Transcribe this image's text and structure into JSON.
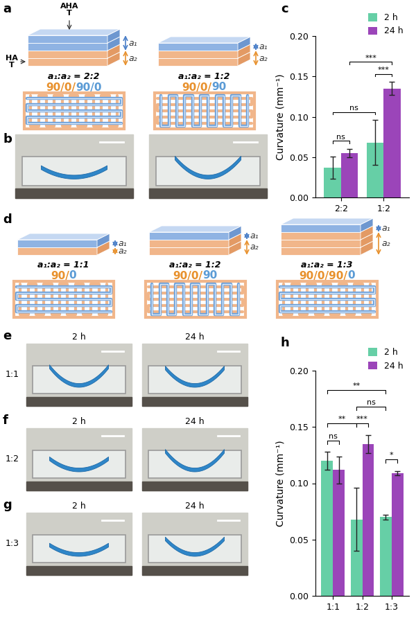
{
  "panels": {
    "a": {
      "letter": "a",
      "top_label": "AHA\nT",
      "bottom_label": "HA\nT",
      "stacks": [
        {
          "a1_label": "a₁",
          "a2_label": "a₂",
          "ratio_label": "a₁:a₂ = 2:2",
          "pattern": [
            {
              "text": "90/0/",
              "color": "#e8912d"
            },
            {
              "text": "90/0",
              "color": "#5b9bd5"
            }
          ]
        },
        {
          "a1_label": "a₁",
          "a2_label": "a₂",
          "ratio_label": "a₁:a₂ = 1:2",
          "pattern": [
            {
              "text": "90/0/",
              "color": "#e8912d"
            },
            {
              "text": "90",
              "color": "#5b9bd5"
            }
          ]
        }
      ]
    },
    "b": {
      "letter": "b"
    },
    "c": {
      "letter": "c"
    },
    "d": {
      "letter": "d",
      "stacks": [
        {
          "a1_label": "a₁",
          "a2_label": "a₂",
          "ratio_label": "a₁:a₂ = 1:1",
          "pattern": [
            {
              "text": "90/",
              "color": "#e8912d"
            },
            {
              "text": "0",
              "color": "#5b9bd5"
            }
          ]
        },
        {
          "a1_label": "a₁",
          "a2_label": "a₂",
          "ratio_label": "a₁:a₂ = 1:2",
          "pattern": [
            {
              "text": "90/0/",
              "color": "#e8912d"
            },
            {
              "text": "90",
              "color": "#5b9bd5"
            }
          ]
        },
        {
          "a1_label": "a₁",
          "a2_label": "a₂",
          "ratio_label": "a₁:a₂ = 1:3",
          "pattern": [
            {
              "text": "90/0/90/",
              "color": "#e8912d"
            },
            {
              "text": "0",
              "color": "#5b9bd5"
            }
          ]
        }
      ]
    },
    "e": {
      "letter": "e",
      "row_label": "1:1",
      "times": [
        "2 h",
        "24 h"
      ]
    },
    "f": {
      "letter": "f",
      "row_label": "1:2",
      "times": [
        "2 h",
        "24 h"
      ]
    },
    "g": {
      "letter": "g",
      "row_label": "1:3",
      "times": [
        "2 h",
        "24 h"
      ]
    },
    "h": {
      "letter": "h"
    }
  },
  "chart_data": [
    {
      "type": "bar",
      "y_label": "Curvature (mm⁻¹)",
      "categories": [
        "2:2",
        "1:2"
      ],
      "series": [
        {
          "name": "2 h",
          "color": "#66cfa6",
          "values": [
            0.037,
            0.068
          ],
          "errors": [
            0.014,
            0.028
          ]
        },
        {
          "name": "24 h",
          "color": "#9b45b9",
          "values": [
            0.055,
            0.135
          ],
          "errors": [
            0.005,
            0.008
          ]
        }
      ],
      "ylim": [
        0,
        0.2
      ],
      "yticks": [
        {
          "value": 0,
          "label": "0.00"
        },
        {
          "value": 0.05,
          "label": "0.05"
        },
        {
          "value": 0.1,
          "label": "0.10"
        },
        {
          "value": 0.15,
          "label": "0.15"
        },
        {
          "value": 0.2,
          "label": "0.20"
        }
      ],
      "legend": "upper right",
      "annotations": [
        {
          "between": [
            [
              "2:2",
              "2 h"
            ],
            [
              "2:2",
              "24 h"
            ]
          ],
          "label": "ns"
        },
        {
          "between": [
            [
              "1:2",
              "2 h"
            ],
            [
              "1:2",
              "24 h"
            ]
          ],
          "label": "***"
        },
        {
          "between": [
            [
              "2:2",
              "2 h"
            ],
            [
              "1:2",
              "2 h"
            ]
          ],
          "label": "ns"
        },
        {
          "between": [
            [
              "2:2",
              "24 h"
            ],
            [
              "1:2",
              "24 h"
            ]
          ],
          "label": "***"
        }
      ]
    },
    {
      "type": "bar",
      "y_label": "Curvature (mm⁻¹)",
      "categories": [
        "1:1",
        "1:2",
        "1:3"
      ],
      "series": [
        {
          "name": "2 h",
          "color": "#66cfa6",
          "values": [
            0.12,
            0.068,
            0.07
          ],
          "errors": [
            0.008,
            0.028,
            0.002
          ]
        },
        {
          "name": "24 h",
          "color": "#9b45b9",
          "values": [
            0.112,
            0.135,
            0.109
          ],
          "errors": [
            0.012,
            0.008,
            0.002
          ]
        }
      ],
      "ylim": [
        0,
        0.2
      ],
      "yticks": [
        {
          "value": 0,
          "label": "0.00"
        },
        {
          "value": 0.05,
          "label": "0.05"
        },
        {
          "value": 0.1,
          "label": "0.10"
        },
        {
          "value": 0.15,
          "label": "0.15"
        },
        {
          "value": 0.2,
          "label": "0.20"
        }
      ],
      "legend": "upper right",
      "annotations": [
        {
          "between": [
            [
              "1:1",
              "2 h"
            ],
            [
              "1:1",
              "24 h"
            ]
          ],
          "label": "ns"
        },
        {
          "between": [
            [
              "1:2",
              "2 h"
            ],
            [
              "1:2",
              "24 h"
            ]
          ],
          "label": "***"
        },
        {
          "between": [
            [
              "1:3",
              "2 h"
            ],
            [
              "1:3",
              "24 h"
            ]
          ],
          "label": "*"
        },
        {
          "between": [
            [
              "1:1",
              "2 h"
            ],
            [
              "1:2",
              "2 h"
            ]
          ],
          "label": "**"
        },
        {
          "between": [
            [
              "1:2",
              "2 h"
            ],
            [
              "1:3",
              "2 h"
            ]
          ],
          "label": "ns"
        },
        {
          "between": [
            [
              "1:1",
              "2 h"
            ],
            [
              "1:3",
              "2 h"
            ]
          ],
          "label": "**"
        }
      ]
    }
  ]
}
